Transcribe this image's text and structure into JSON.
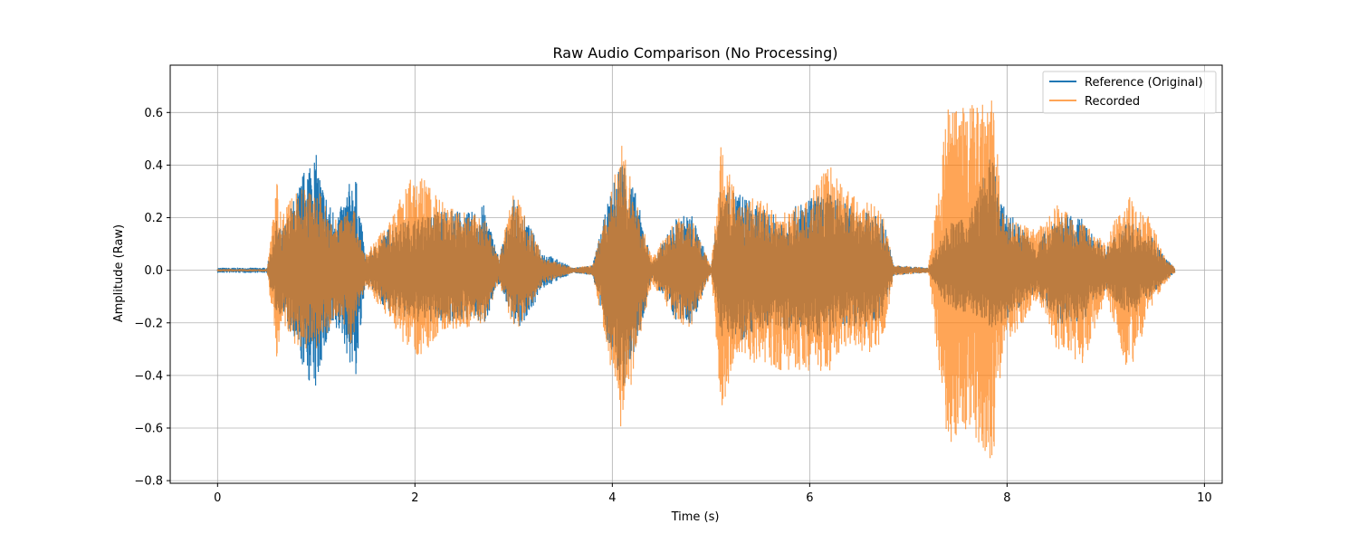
{
  "chart_data": {
    "type": "line",
    "title": "Raw Audio Comparison (No Processing)",
    "xlabel": "Time (s)",
    "ylabel": "Amplitude (Raw)",
    "xlim": [
      -0.48,
      10.18
    ],
    "ylim": [
      -0.81,
      0.78
    ],
    "xticks": [
      0,
      2,
      4,
      6,
      8,
      10
    ],
    "yticks": [
      -0.8,
      -0.6,
      -0.4,
      -0.2,
      0.0,
      0.2,
      0.4,
      0.6
    ],
    "xtick_labels": [
      "0",
      "2",
      "4",
      "6",
      "8",
      "10"
    ],
    "ytick_labels": [
      "−0.8",
      "−0.6",
      "−0.4",
      "−0.2",
      "0.0",
      "0.2",
      "0.4",
      "0.6"
    ],
    "grid": true,
    "legend_position": "top-right",
    "series": [
      {
        "name": "Reference (Original)",
        "color": "#1f77b4",
        "x": [
          0.0,
          0.5,
          0.6,
          0.65,
          0.8,
          0.95,
          1.0,
          1.05,
          1.15,
          1.25,
          1.35,
          1.4,
          1.5,
          1.75,
          2.0,
          2.05,
          2.3,
          2.55,
          2.7,
          2.85,
          3.0,
          3.05,
          3.3,
          3.6,
          3.8,
          3.95,
          4.1,
          4.25,
          4.4,
          4.65,
          4.8,
          5.0,
          5.1,
          5.3,
          5.45,
          5.7,
          5.95,
          6.2,
          6.4,
          6.6,
          6.75,
          6.85,
          7.2,
          7.4,
          7.6,
          7.85,
          7.95,
          8.3,
          8.5,
          8.75,
          9.0,
          9.2,
          9.3,
          9.45,
          9.6,
          9.7
        ],
        "upper": [
          0.01,
          0.01,
          0.2,
          0.15,
          0.3,
          0.46,
          0.44,
          0.35,
          0.24,
          0.24,
          0.35,
          0.36,
          0.05,
          0.17,
          0.2,
          0.2,
          0.24,
          0.22,
          0.25,
          0.05,
          0.27,
          0.25,
          0.07,
          0.01,
          0.02,
          0.25,
          0.45,
          0.28,
          0.03,
          0.2,
          0.22,
          0.01,
          0.33,
          0.3,
          0.25,
          0.2,
          0.27,
          0.3,
          0.25,
          0.22,
          0.2,
          0.02,
          0.01,
          0.18,
          0.2,
          0.45,
          0.25,
          0.1,
          0.22,
          0.2,
          0.08,
          0.2,
          0.17,
          0.15,
          0.05,
          0.01
        ],
        "lower": [
          -0.01,
          -0.01,
          -0.18,
          -0.16,
          -0.32,
          -0.45,
          -0.47,
          -0.35,
          -0.25,
          -0.24,
          -0.38,
          -0.41,
          -0.05,
          -0.17,
          -0.2,
          -0.2,
          -0.2,
          -0.19,
          -0.21,
          -0.05,
          -0.2,
          -0.23,
          -0.07,
          -0.01,
          -0.02,
          -0.27,
          -0.47,
          -0.29,
          -0.03,
          -0.2,
          -0.21,
          -0.01,
          -0.25,
          -0.27,
          -0.23,
          -0.22,
          -0.26,
          -0.25,
          -0.21,
          -0.22,
          -0.17,
          -0.02,
          -0.01,
          -0.15,
          -0.16,
          -0.22,
          -0.2,
          -0.08,
          -0.21,
          -0.2,
          -0.07,
          -0.17,
          -0.16,
          -0.1,
          -0.04,
          -0.01
        ]
      },
      {
        "name": "Recorded",
        "color": "#ff7f0e",
        "x": [
          0.0,
          0.5,
          0.6,
          0.65,
          0.8,
          0.95,
          1.0,
          1.05,
          1.15,
          1.25,
          1.35,
          1.4,
          1.5,
          1.75,
          2.0,
          2.05,
          2.3,
          2.55,
          2.7,
          2.85,
          3.0,
          3.05,
          3.3,
          3.6,
          3.8,
          3.95,
          4.1,
          4.25,
          4.4,
          4.65,
          4.8,
          5.0,
          5.1,
          5.3,
          5.45,
          5.7,
          5.95,
          6.2,
          6.4,
          6.6,
          6.75,
          6.85,
          7.2,
          7.4,
          7.6,
          7.85,
          7.95,
          8.3,
          8.5,
          8.75,
          9.0,
          9.2,
          9.3,
          9.45,
          9.6,
          9.7
        ],
        "upper": [
          0.005,
          0.005,
          0.34,
          0.2,
          0.32,
          0.3,
          0.3,
          0.3,
          0.2,
          0.2,
          0.3,
          0.2,
          0.06,
          0.2,
          0.38,
          0.38,
          0.25,
          0.22,
          0.2,
          0.05,
          0.31,
          0.28,
          0.05,
          0.01,
          0.02,
          0.25,
          0.48,
          0.25,
          0.05,
          0.2,
          0.22,
          0.01,
          0.48,
          0.25,
          0.28,
          0.23,
          0.25,
          0.42,
          0.3,
          0.28,
          0.2,
          0.02,
          0.01,
          0.62,
          0.62,
          0.7,
          0.22,
          0.15,
          0.25,
          0.2,
          0.1,
          0.3,
          0.25,
          0.2,
          0.05,
          0.01
        ],
        "lower": [
          -0.005,
          -0.005,
          -0.34,
          -0.2,
          -0.3,
          -0.3,
          -0.3,
          -0.3,
          -0.2,
          -0.2,
          -0.3,
          -0.2,
          -0.06,
          -0.2,
          -0.35,
          -0.33,
          -0.23,
          -0.22,
          -0.2,
          -0.05,
          -0.23,
          -0.22,
          -0.05,
          -0.01,
          -0.02,
          -0.3,
          -0.65,
          -0.3,
          -0.05,
          -0.2,
          -0.22,
          -0.01,
          -0.56,
          -0.32,
          -0.36,
          -0.38,
          -0.38,
          -0.4,
          -0.28,
          -0.35,
          -0.25,
          -0.02,
          -0.01,
          -0.68,
          -0.6,
          -0.74,
          -0.32,
          -0.12,
          -0.3,
          -0.38,
          -0.1,
          -0.38,
          -0.35,
          -0.15,
          -0.05,
          -0.01
        ]
      }
    ]
  }
}
